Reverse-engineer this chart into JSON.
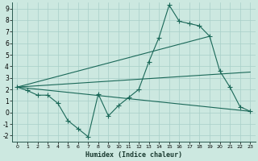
{
  "xlabel": "Humidex (Indice chaleur)",
  "background_color": "#cce8e0",
  "grid_color": "#a8cfc8",
  "line_color": "#1a6858",
  "xlim": [
    -0.5,
    23.5
  ],
  "ylim": [
    -2.5,
    9.5
  ],
  "xticks": [
    0,
    1,
    2,
    3,
    4,
    5,
    6,
    7,
    8,
    9,
    10,
    11,
    12,
    13,
    14,
    15,
    16,
    17,
    18,
    19,
    20,
    21,
    22,
    23
  ],
  "yticks": [
    -2,
    -1,
    0,
    1,
    2,
    3,
    4,
    5,
    6,
    7,
    8,
    9
  ],
  "line1_x": [
    0,
    1,
    2,
    3,
    4,
    5,
    6,
    7,
    8,
    9,
    10,
    11,
    12,
    13,
    14,
    15,
    16,
    17,
    18,
    19,
    20,
    21,
    22,
    23
  ],
  "line1_y": [
    2.2,
    1.9,
    1.5,
    1.5,
    0.8,
    -0.7,
    -1.4,
    -2.1,
    1.6,
    -0.3,
    0.6,
    1.3,
    2.0,
    4.4,
    6.5,
    9.3,
    7.9,
    7.7,
    7.5,
    6.6,
    3.6,
    2.2,
    0.5,
    0.1
  ],
  "line2_x": [
    0,
    23
  ],
  "line2_y": [
    2.2,
    0.1
  ],
  "line3_x": [
    0,
    23
  ],
  "line3_y": [
    2.2,
    3.5
  ],
  "line4_x": [
    0,
    19
  ],
  "line4_y": [
    2.2,
    6.6
  ]
}
